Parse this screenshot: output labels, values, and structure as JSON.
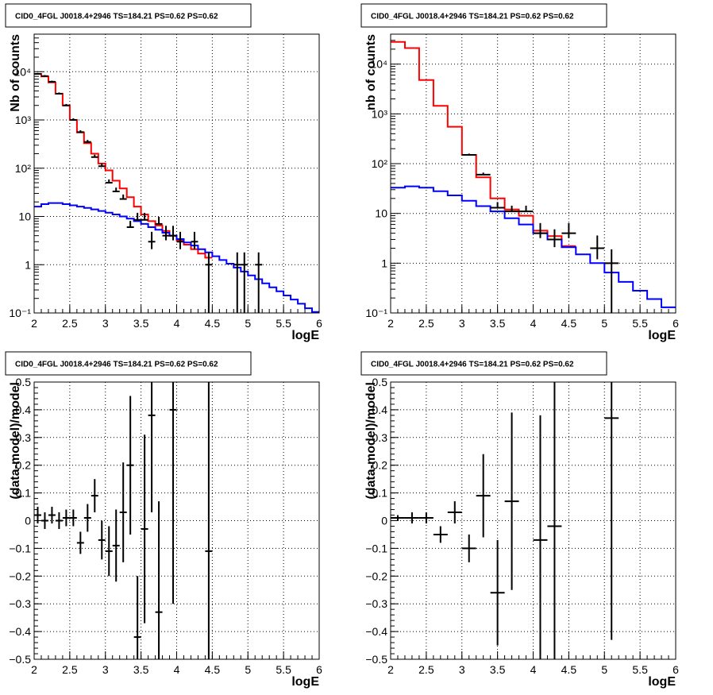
{
  "panel_title": "CID0_4FGL J0018.4+2946 TS=184.21 PS=0.62 PS=0.62",
  "chart_data": [
    {
      "type": "step-histogram",
      "title": "CID0_4FGL J0018.4+2946 TS=184.21 PS=0.62 PS=0.62",
      "xlabel": "logE",
      "ylabel": "Nb of counts",
      "yscale": "log",
      "xlim": [
        2,
        6
      ],
      "ylim": [
        0.1,
        60000
      ],
      "xticks": [
        "2",
        "2.5",
        "3",
        "3.5",
        "4",
        "4.5",
        "5",
        "5.5",
        "6"
      ],
      "yticks": [
        "10⁻¹",
        "1",
        "10",
        "10²",
        "10³",
        "10⁴"
      ],
      "grid": true,
      "bin_edges": [
        2,
        2.1,
        2.2,
        2.3,
        2.4,
        2.5,
        2.6,
        2.7,
        2.8,
        2.9,
        3,
        3.1,
        3.2,
        3.3,
        3.4,
        3.5,
        3.6,
        3.7,
        3.8,
        3.9,
        4,
        4.1,
        4.2,
        4.3,
        4.4,
        4.5,
        4.6,
        4.7,
        4.8,
        4.9,
        5,
        5.1,
        5.2,
        5.3,
        5.4,
        5.5,
        5.6,
        5.7,
        5.8,
        5.9,
        6
      ],
      "series": [
        {
          "color": "#ff0000",
          "style": "step",
          "values": [
            9000,
            8000,
            6000,
            3500,
            2000,
            1000,
            550,
            330,
            200,
            125,
            90,
            55,
            38,
            25,
            16,
            11,
            8,
            6.5,
            5,
            4,
            3.2,
            2.6,
            2.1,
            1.7,
            1.4
          ]
        },
        {
          "color": "#0000ff",
          "style": "step",
          "values": [
            16,
            18,
            19,
            19,
            18,
            17,
            16,
            15,
            14,
            13,
            12,
            11,
            10,
            9,
            8,
            7,
            6,
            5.3,
            4.6,
            4,
            3.4,
            2.9,
            2.5,
            2.1,
            1.8,
            1.5,
            1.25,
            1.05,
            0.87,
            0.72,
            0.6,
            0.5,
            0.41,
            0.34,
            0.28,
            0.23,
            0.19,
            0.155,
            0.125,
            0.105
          ]
        },
        {
          "color": "#000000",
          "style": "points",
          "points": [
            [
              2.05,
              9000,
              0,
              0.05
            ],
            [
              2.15,
              8100,
              0,
              0.05
            ],
            [
              2.25,
              6200,
              0,
              0.05
            ],
            [
              2.35,
              3500,
              0,
              0.06
            ],
            [
              2.45,
              2000,
              0,
              0.07
            ],
            [
              2.55,
              1000,
              0,
              0.08
            ],
            [
              2.65,
              560,
              0,
              0.09
            ],
            [
              2.75,
              350,
              0,
              0.1
            ],
            [
              2.85,
              170,
              0,
              0.12
            ],
            [
              2.95,
              110,
              0,
              0.14
            ],
            [
              3.05,
              50,
              0,
              0.17
            ],
            [
              3.15,
              33,
              0,
              0.2
            ],
            [
              3.25,
              23,
              0,
              0.24
            ],
            [
              3.35,
              6,
              0,
              0.35
            ],
            [
              3.45,
              8.5,
              0,
              0.4
            ],
            [
              3.55,
              8.5,
              0,
              0.4
            ],
            [
              3.65,
              3,
              0.3,
              0.6
            ],
            [
              3.75,
              7,
              0,
              0.4
            ],
            [
              3.85,
              4,
              0.2,
              0.6
            ],
            [
              3.95,
              4,
              0.2,
              0.6
            ],
            [
              4.05,
              3,
              0.3,
              0.6
            ],
            [
              4.25,
              3,
              0.3,
              0.6
            ],
            [
              4.45,
              1,
              2,
              0.8
            ],
            [
              4.85,
              1,
              2,
              0.8
            ],
            [
              4.95,
              1,
              2,
              0.8
            ],
            [
              5.15,
              1,
              2,
              0.8
            ]
          ]
        }
      ]
    },
    {
      "type": "step-histogram",
      "title": "CID0_4FGL J0018.4+2946 TS=184.21 PS=0.62 PS=0.62",
      "xlabel": "logE",
      "ylabel": "nb of counts",
      "yscale": "log",
      "xlim": [
        2,
        6
      ],
      "ylim": [
        0.1,
        40000
      ],
      "xticks": [
        "2",
        "2.5",
        "3",
        "3.5",
        "4",
        "4.5",
        "5",
        "5.5",
        "6"
      ],
      "yticks": [
        "10⁻¹",
        "1",
        "10",
        "10²",
        "10³",
        "10⁴"
      ],
      "grid": true,
      "bin_edges": [
        2,
        2.2,
        2.4,
        2.6,
        2.8,
        3,
        3.2,
        3.4,
        3.6,
        3.8,
        4,
        4.2,
        4.4,
        4.6,
        4.8,
        5,
        5.2,
        5.4,
        5.6,
        5.8,
        6
      ],
      "series": [
        {
          "color": "#ff0000",
          "style": "step",
          "values": [
            28000,
            21000,
            4800,
            1450,
            550,
            150,
            53,
            20,
            12,
            9,
            4.5,
            3.5,
            2.2
          ]
        },
        {
          "color": "#0000ff",
          "style": "step",
          "values": [
            33,
            35,
            33,
            28,
            23,
            18,
            14,
            11,
            8,
            6,
            4,
            3,
            2.1,
            1.5,
            1,
            0.65,
            0.42,
            0.28,
            0.19,
            0.13
          ]
        },
        {
          "color": "#000000",
          "style": "points",
          "points": [
            [
              3.1,
              150,
              0,
              0.06
            ],
            [
              3.3,
              60,
              0,
              0.1
            ],
            [
              3.5,
              13,
              0,
              0.3
            ],
            [
              3.7,
              11,
              0,
              0.3
            ],
            [
              3.9,
              11,
              0,
              0.3
            ],
            [
              4.1,
              4,
              0.2,
              0.6
            ],
            [
              4.3,
              3,
              0.3,
              0.6
            ],
            [
              4.5,
              4,
              0.2,
              0.6
            ],
            [
              4.9,
              2,
              0.4,
              0.8
            ],
            [
              5.1,
              1,
              2,
              0.9
            ]
          ]
        }
      ]
    },
    {
      "type": "scatter",
      "title": "CID0_4FGL J0018.4+2946 TS=184.21 PS=0.62 PS=0.62",
      "xlabel": "logE",
      "ylabel": "(data-model)/model",
      "xlim": [
        2,
        6
      ],
      "ylim": [
        -0.5,
        0.5
      ],
      "xticks": [
        "2",
        "2.5",
        "3",
        "3.5",
        "4",
        "4.5",
        "5",
        "5.5",
        "6"
      ],
      "yticks": [
        "−0.5",
        "−0.4",
        "−0.3",
        "−0.2",
        "−0.1",
        "0",
        "0.1",
        "0.2",
        "0.3",
        "0.4",
        "0.5"
      ],
      "grid": true,
      "points": [
        [
          2.05,
          0.02,
          0.03
        ],
        [
          2.15,
          0.0,
          0.03
        ],
        [
          2.25,
          0.02,
          0.03
        ],
        [
          2.35,
          0.0,
          0.03
        ],
        [
          2.45,
          0.01,
          0.03
        ],
        [
          2.55,
          0.01,
          0.03
        ],
        [
          2.65,
          -0.08,
          0.04
        ],
        [
          2.75,
          0.01,
          0.05
        ],
        [
          2.85,
          0.09,
          0.06
        ],
        [
          2.95,
          -0.07,
          0.07
        ],
        [
          3.05,
          -0.11,
          0.09
        ],
        [
          3.15,
          -0.09,
          0.13
        ],
        [
          3.25,
          0.03,
          0.18
        ],
        [
          3.35,
          0.2,
          0.25
        ],
        [
          3.45,
          -0.42,
          0.22
        ],
        [
          3.55,
          -0.03,
          0.34
        ],
        [
          3.65,
          0.38,
          0.35
        ],
        [
          3.75,
          -0.33,
          0.4
        ],
        [
          3.95,
          0.4,
          0.7
        ],
        [
          4.45,
          -0.11,
          1.0
        ]
      ]
    },
    {
      "type": "scatter",
      "title": "CID0_4FGL J0018.4+2946 TS=184.21 PS=0.62 PS=0.62",
      "xlabel": "logE",
      "ylabel": "(data-model)/model",
      "xlim": [
        2,
        6
      ],
      "ylim": [
        -0.5,
        0.5
      ],
      "xticks": [
        "2",
        "2.5",
        "3",
        "3.5",
        "4",
        "4.5",
        "5",
        "5.5",
        "6"
      ],
      "yticks": [
        "−0.5",
        "−0.4",
        "−0.3",
        "−0.2",
        "−0.1",
        "0",
        "0.1",
        "0.2",
        "0.3",
        "0.4",
        "0.5"
      ],
      "grid": true,
      "points": [
        [
          2.1,
          0.01,
          0.01
        ],
        [
          2.3,
          0.01,
          0.02
        ],
        [
          2.5,
          0.01,
          0.02
        ],
        [
          2.7,
          -0.05,
          0.03
        ],
        [
          2.9,
          0.03,
          0.04
        ],
        [
          3.1,
          -0.1,
          0.05
        ],
        [
          3.3,
          0.09,
          0.15
        ],
        [
          3.5,
          -0.26,
          0.19
        ],
        [
          3.7,
          0.07,
          0.32
        ],
        [
          4.1,
          -0.07,
          0.45
        ],
        [
          4.3,
          -0.02,
          0.55
        ],
        [
          5.1,
          0.37,
          0.8
        ]
      ]
    }
  ]
}
